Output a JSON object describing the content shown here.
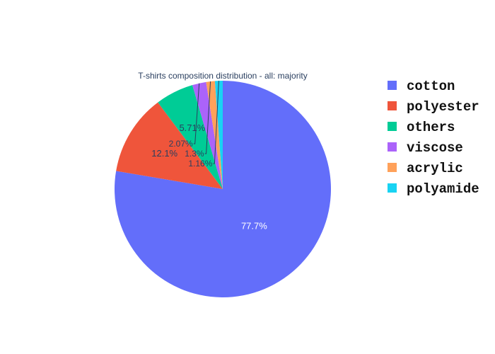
{
  "chart_data": {
    "type": "pie",
    "title": "T-shirts composition distribution - all: majority",
    "direction": "clockwise",
    "start": "top",
    "legend_position": "right",
    "slices": [
      {
        "label": "cotton",
        "value": 77.7,
        "text": "77.7%",
        "color": "#636efa",
        "text_color": "#ffffff",
        "text_position": "inside"
      },
      {
        "label": "polyester",
        "value": 12.1,
        "text": "12.1%",
        "color": "#ef553b",
        "text_color": "#2a3f5f",
        "text_position": "inside"
      },
      {
        "label": "others",
        "value": 5.71,
        "text": "5.71%",
        "color": "#00cc96",
        "text_color": "#2a3f5f",
        "text_position": "inside"
      },
      {
        "label": "viscose",
        "value": 2.07,
        "text": "2.07%",
        "color": "#ab63fa",
        "text_color": "#2a3f5f",
        "text_position": "outside"
      },
      {
        "label": "acrylic",
        "value": 1.3,
        "text": "1.3%",
        "color": "#ffa15a",
        "text_color": "#2a3f5f",
        "text_position": "outside"
      },
      {
        "label": "polyamide",
        "value": 1.16,
        "text": "1.16%",
        "color": "#19d3f3",
        "text_color": "#2a3f5f",
        "text_position": "outside"
      }
    ]
  }
}
